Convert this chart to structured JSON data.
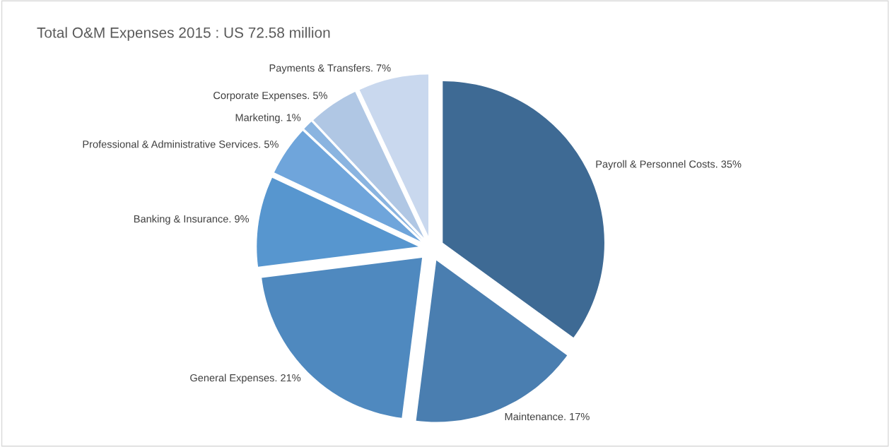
{
  "chart_data": {
    "type": "pie",
    "title": "Total O&M Expenses 2015 : US 72.58 million",
    "categories": [
      "Payroll & Personnel Costs.",
      "Maintenance.",
      "General Expenses.",
      "Banking & Insurance.",
      "Professional & Administrative Services.",
      "Marketing.",
      "Corporate Expenses.",
      "Payments & Transfers."
    ],
    "values": [
      35,
      17,
      21,
      9,
      5,
      1,
      5,
      7
    ],
    "value_labels": [
      "35%",
      "17%",
      "21%",
      "9%",
      "5%",
      "1%",
      "5%",
      "7%"
    ],
    "colors": [
      "#3e6a94",
      "#4a7eb0",
      "#4f89bf",
      "#5796cf",
      "#6fa5db",
      "#8ab4e0",
      "#b0c7e4",
      "#c9d8ee"
    ],
    "legend": false
  }
}
